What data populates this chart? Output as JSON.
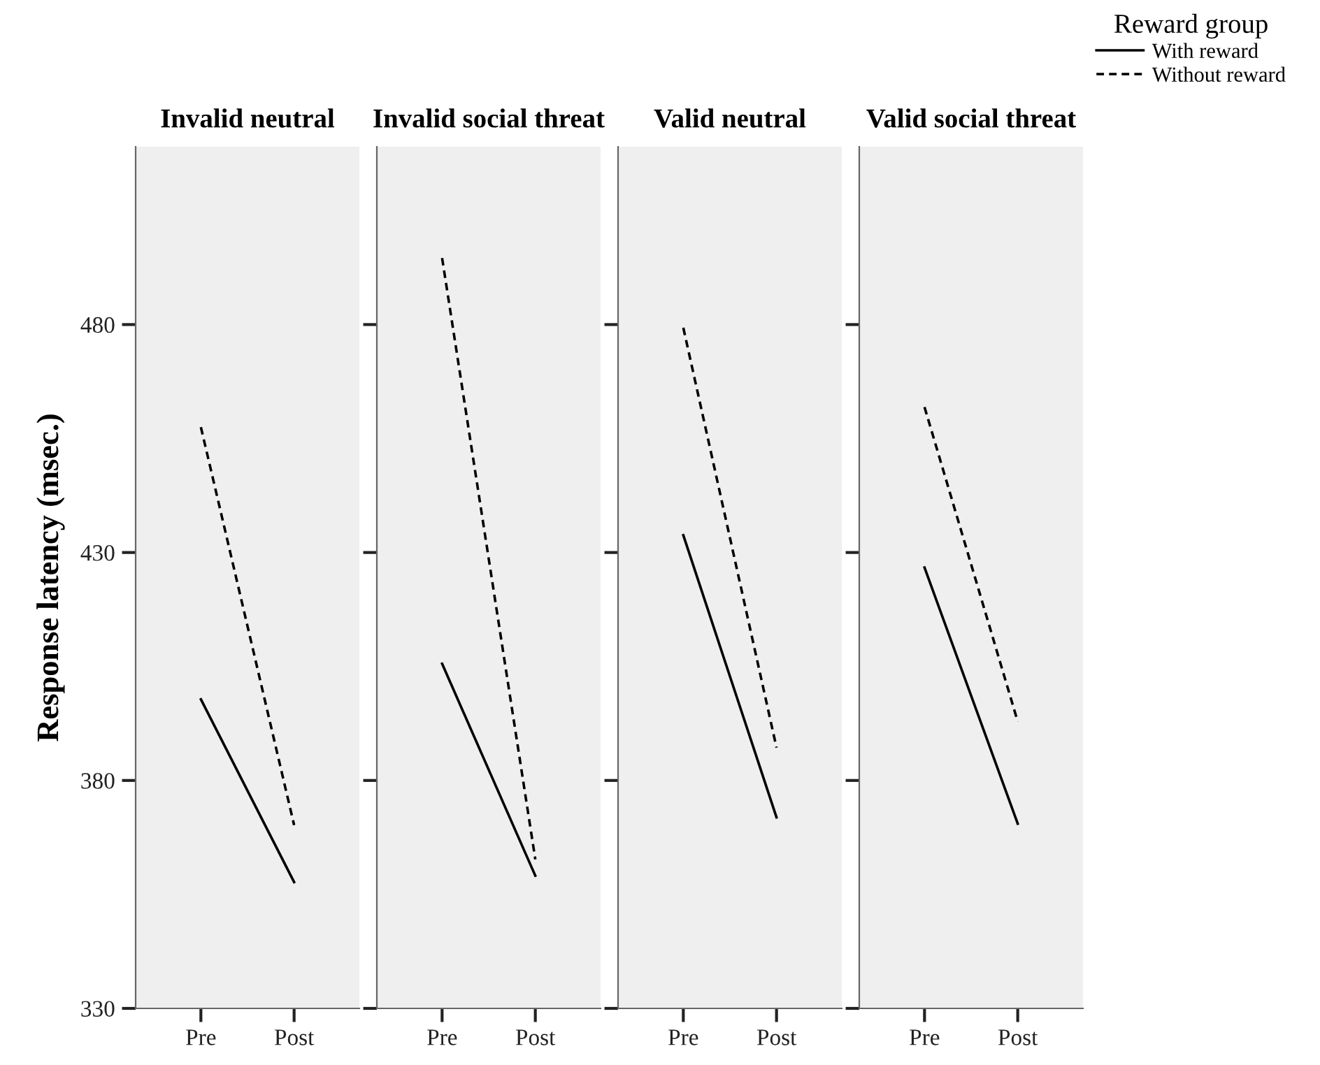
{
  "chart_data": [
    {
      "type": "line",
      "title": "Invalid neutral",
      "ylabel": "Response latency (msec.)",
      "categories": [
        "Pre",
        "Post"
      ],
      "ylim": [
        330,
        519
      ],
      "yticks": [
        330,
        380,
        430,
        480
      ],
      "grid": false,
      "legend": false,
      "series": [
        {
          "color": "#000000",
          "line_style": "solid",
          "values": [
            397.8,
            357.7
          ]
        },
        {
          "color": "#000000",
          "line_style": "dashed",
          "values": [
            457.5,
            370.2
          ]
        }
      ]
    },
    {
      "type": "line",
      "title": "Invalid social threat",
      "categories": [
        "Pre",
        "Post"
      ],
      "ylim": [
        330,
        519
      ],
      "yticks": [
        330,
        380,
        430,
        480
      ],
      "tick_labels": "x",
      "grid": false,
      "legend": false,
      "series": [
        {
          "color": "#000000",
          "line_style": "solid",
          "values": [
            405.6,
            359.1
          ]
        },
        {
          "color": "#000000",
          "line_style": "dashed",
          "values": [
            494.6,
            362.7
          ]
        }
      ]
    },
    {
      "type": "line",
      "title": "Valid neutral",
      "categories": [
        "Pre",
        "Post"
      ],
      "ylim": [
        330,
        519
      ],
      "yticks": [
        330,
        380,
        430,
        480
      ],
      "tick_labels": "x",
      "grid": false,
      "legend": false,
      "series": [
        {
          "color": "#000000",
          "line_style": "solid",
          "values": [
            433.8,
            371.9
          ]
        },
        {
          "color": "#000000",
          "line_style": "dashed",
          "values": [
            479.3,
            387.2
          ]
        }
      ]
    },
    {
      "type": "line",
      "title": "Valid social threat",
      "categories": [
        "Pre",
        "Post"
      ],
      "ylim": [
        330,
        519
      ],
      "yticks": [
        330,
        380,
        430,
        480
      ],
      "tick_labels": "x",
      "grid": false,
      "legend": "top right",
      "legend_title": "Reward group",
      "series": [
        {
          "name": "With reward",
          "color": "#000000",
          "line_style": "solid",
          "values": [
            426.7,
            370.5
          ]
        },
        {
          "name": "Without reward",
          "color": "#000000",
          "line_style": "dashed",
          "values": [
            461.9,
            392.9
          ]
        }
      ]
    }
  ]
}
